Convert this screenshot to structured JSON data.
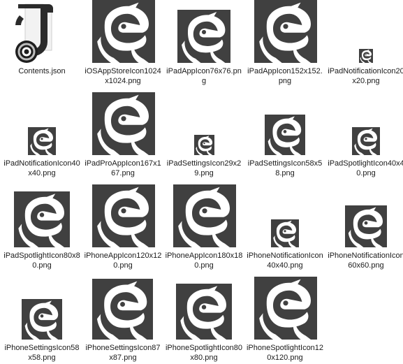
{
  "files": [
    {
      "name": "Contents.json",
      "type": "json",
      "icon": "json-file-icon"
    },
    {
      "name": "iOSAppStoreIcon1024x1024.png",
      "type": "png",
      "icon": "app-icon-thumbnail"
    },
    {
      "name": "iPadAppIcon76x76.png",
      "type": "png",
      "icon": "app-icon-thumbnail"
    },
    {
      "name": "iPadAppIcon152x152.png",
      "type": "png",
      "icon": "app-icon-thumbnail"
    },
    {
      "name": "iPadNotificationIcon20x20.png",
      "type": "png",
      "icon": "app-icon-thumbnail"
    },
    {
      "name": "iPadNotificationIcon40x40.png",
      "type": "png",
      "icon": "app-icon-thumbnail"
    },
    {
      "name": "iPadProAppIcon167x167.png",
      "type": "png",
      "icon": "app-icon-thumbnail"
    },
    {
      "name": "iPadSettingsIcon29x29.png",
      "type": "png",
      "icon": "app-icon-thumbnail"
    },
    {
      "name": "iPadSettingsIcon58x58.png",
      "type": "png",
      "icon": "app-icon-thumbnail"
    },
    {
      "name": "iPadSpotlightIcon40x40.png",
      "type": "png",
      "icon": "app-icon-thumbnail"
    },
    {
      "name": "iPadSpotlightIcon80x80.png",
      "type": "png",
      "icon": "app-icon-thumbnail"
    },
    {
      "name": "iPhoneAppIcon120x120.png",
      "type": "png",
      "icon": "app-icon-thumbnail"
    },
    {
      "name": "iPhoneAppIcon180x180.png",
      "type": "png",
      "icon": "app-icon-thumbnail"
    },
    {
      "name": "iPhoneNotificationIcon40x40.png",
      "type": "png",
      "icon": "app-icon-thumbnail"
    },
    {
      "name": "iPhoneNotificationIcon60x60.png",
      "type": "png",
      "icon": "app-icon-thumbnail"
    },
    {
      "name": "iPhoneSettingsIcon58x58.png",
      "type": "png",
      "icon": "app-icon-thumbnail"
    },
    {
      "name": "iPhoneSettingsIcon87x87.png",
      "type": "png",
      "icon": "app-icon-thumbnail"
    },
    {
      "name": "iPhoneSpotlightIcon80x80.png",
      "type": "png",
      "icon": "app-icon-thumbnail"
    },
    {
      "name": "iPhoneSpotlightIcon120x120.png",
      "type": "png",
      "icon": "app-icon-thumbnail"
    }
  ],
  "colors": {
    "icon_background": "#404040",
    "icon_foreground": "#ffffff",
    "label_text": "#1a1a1a"
  }
}
